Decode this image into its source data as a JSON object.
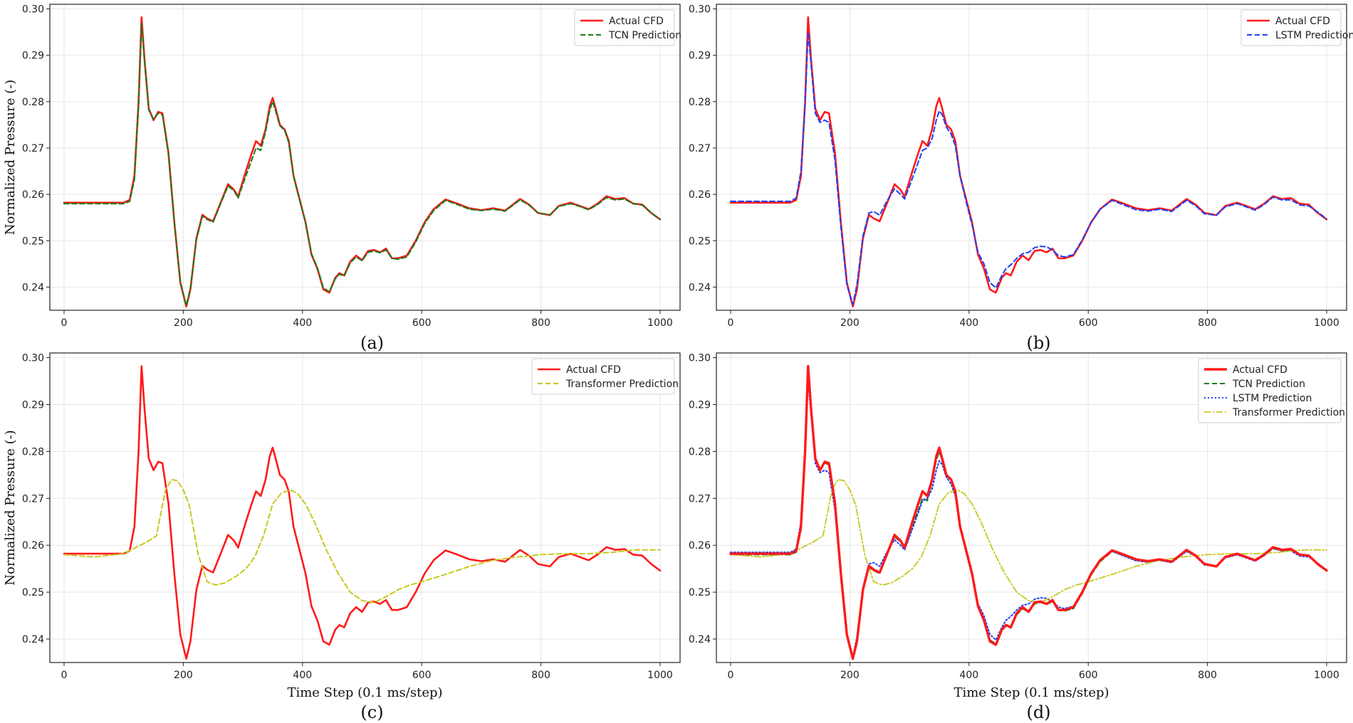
{
  "figure": {
    "ylabel": "Normalized Pressure (-)",
    "xlabel": "Time Step (0.1 ms/step)",
    "series_colors": {
      "Actual CFD": "#ff1a1a",
      "TCN Prediction": "#1a7a1a",
      "LSTM Prediction": "#1f3fff",
      "Transformer Prediction": "#c8c81e"
    }
  },
  "chart_data": [
    {
      "panel": "(a)",
      "type": "line",
      "xlim": [
        0,
        1000
      ],
      "ylim": [
        0.235,
        0.301
      ],
      "xticks": [
        0,
        200,
        400,
        600,
        800,
        1000
      ],
      "yticks": [
        0.24,
        0.25,
        0.26,
        0.27,
        0.28,
        0.29,
        0.3
      ],
      "ylabel": "Normalized Pressure (-)",
      "xlabel": "",
      "grid": true,
      "legend": "top-right",
      "series": [
        {
          "name": "Actual CFD",
          "model": "actual",
          "style": "solid"
        },
        {
          "name": "TCN Prediction",
          "model": "tcn",
          "style": "dashed"
        }
      ]
    },
    {
      "panel": "(b)",
      "type": "line",
      "xlim": [
        0,
        1000
      ],
      "ylim": [
        0.235,
        0.301
      ],
      "xticks": [
        0,
        200,
        400,
        600,
        800,
        1000
      ],
      "yticks": [
        0.24,
        0.25,
        0.26,
        0.27,
        0.28,
        0.29,
        0.3
      ],
      "ylabel": "",
      "xlabel": "",
      "grid": true,
      "legend": "top-right",
      "series": [
        {
          "name": "Actual CFD",
          "model": "actual",
          "style": "solid"
        },
        {
          "name": "LSTM Prediction",
          "model": "lstm",
          "style": "dashed"
        }
      ]
    },
    {
      "panel": "(c)",
      "type": "line",
      "xlim": [
        0,
        1000
      ],
      "ylim": [
        0.235,
        0.301
      ],
      "xticks": [
        0,
        200,
        400,
        600,
        800,
        1000
      ],
      "yticks": [
        0.24,
        0.25,
        0.26,
        0.27,
        0.28,
        0.29,
        0.3
      ],
      "ylabel": "Normalized Pressure (-)",
      "xlabel": "Time Step (0.1 ms/step)",
      "grid": true,
      "legend": "top-right",
      "series": [
        {
          "name": "Actual CFD",
          "model": "actual",
          "style": "solid"
        },
        {
          "name": "Transformer Prediction",
          "model": "transformer",
          "style": "dashed"
        }
      ]
    },
    {
      "panel": "(d)",
      "type": "line",
      "xlim": [
        0,
        1000
      ],
      "ylim": [
        0.235,
        0.301
      ],
      "xticks": [
        0,
        200,
        400,
        600,
        800,
        1000
      ],
      "yticks": [
        0.24,
        0.25,
        0.26,
        0.27,
        0.28,
        0.29,
        0.3
      ],
      "ylabel": "",
      "xlabel": "Time Step (0.1 ms/step)",
      "grid": true,
      "legend": "top-right",
      "series": [
        {
          "name": "Actual CFD",
          "model": "actual",
          "style": "solid-thick"
        },
        {
          "name": "TCN Prediction",
          "model": "tcn",
          "style": "dashed"
        },
        {
          "name": "LSTM Prediction",
          "model": "lstm",
          "style": "dotted"
        },
        {
          "name": "Transformer Prediction",
          "model": "transformer",
          "style": "dashdot"
        }
      ]
    }
  ],
  "series_data": {
    "actual": {
      "x": [
        0,
        100,
        110,
        118,
        125,
        130,
        135,
        142,
        150,
        158,
        165,
        175,
        185,
        195,
        205,
        212,
        222,
        232,
        240,
        250,
        262,
        275,
        285,
        292,
        305,
        315,
        322,
        330,
        338,
        345,
        350,
        355,
        362,
        370,
        377,
        385,
        395,
        405,
        415,
        425,
        435,
        445,
        455,
        462,
        470,
        480,
        490,
        500,
        510,
        520,
        530,
        540,
        550,
        560,
        575,
        590,
        605,
        620,
        640,
        660,
        680,
        700,
        720,
        740,
        765,
        780,
        795,
        815,
        830,
        850,
        865,
        880,
        895,
        910,
        925,
        940,
        955,
        970,
        985,
        1000
      ],
      "y": [
        0.2582,
        0.2582,
        0.2588,
        0.264,
        0.28,
        0.2982,
        0.289,
        0.2785,
        0.276,
        0.2778,
        0.2775,
        0.269,
        0.254,
        0.241,
        0.2358,
        0.2395,
        0.2505,
        0.2556,
        0.2548,
        0.2542,
        0.258,
        0.2622,
        0.261,
        0.2595,
        0.265,
        0.269,
        0.2715,
        0.2705,
        0.274,
        0.279,
        0.2808,
        0.2785,
        0.275,
        0.274,
        0.2715,
        0.264,
        0.259,
        0.254,
        0.247,
        0.244,
        0.2395,
        0.2388,
        0.242,
        0.243,
        0.2425,
        0.2455,
        0.2468,
        0.2458,
        0.2478,
        0.248,
        0.2475,
        0.2483,
        0.2462,
        0.2462,
        0.2468,
        0.25,
        0.254,
        0.2568,
        0.2589,
        0.258,
        0.257,
        0.2566,
        0.257,
        0.2565,
        0.259,
        0.2578,
        0.256,
        0.2555,
        0.2575,
        0.2582,
        0.2575,
        0.2568,
        0.258,
        0.2596,
        0.259,
        0.2592,
        0.258,
        0.2578,
        0.256,
        0.2546
      ]
    },
    "tcn": {
      "x": [
        0,
        100,
        110,
        118,
        125,
        130,
        135,
        142,
        150,
        158,
        165,
        175,
        185,
        195,
        205,
        212,
        222,
        232,
        240,
        250,
        262,
        275,
        285,
        292,
        305,
        315,
        322,
        330,
        338,
        345,
        350,
        355,
        362,
        370,
        377,
        385,
        395,
        405,
        415,
        425,
        435,
        445,
        455,
        462,
        470,
        480,
        490,
        500,
        510,
        520,
        530,
        540,
        550,
        560,
        575,
        590,
        605,
        620,
        640,
        660,
        680,
        700,
        720,
        740,
        765,
        780,
        795,
        815,
        830,
        850,
        865,
        880,
        895,
        910,
        925,
        940,
        955,
        970,
        985,
        1000
      ],
      "y": [
        0.258,
        0.258,
        0.2585,
        0.2632,
        0.279,
        0.2968,
        0.2885,
        0.2782,
        0.2762,
        0.2775,
        0.2772,
        0.2688,
        0.254,
        0.2412,
        0.236,
        0.2398,
        0.2502,
        0.2553,
        0.2546,
        0.254,
        0.2578,
        0.2618,
        0.2608,
        0.2592,
        0.264,
        0.2675,
        0.27,
        0.2695,
        0.2735,
        0.2782,
        0.28,
        0.278,
        0.2748,
        0.2738,
        0.2712,
        0.264,
        0.2588,
        0.254,
        0.2472,
        0.2442,
        0.2398,
        0.239,
        0.2418,
        0.2428,
        0.2424,
        0.2452,
        0.2465,
        0.2457,
        0.2475,
        0.2478,
        0.2474,
        0.248,
        0.2462,
        0.246,
        0.2465,
        0.2497,
        0.2537,
        0.2565,
        0.2587,
        0.2578,
        0.2568,
        0.2565,
        0.2568,
        0.2564,
        0.2588,
        0.2577,
        0.256,
        0.2556,
        0.2574,
        0.258,
        0.2574,
        0.2567,
        0.2578,
        0.2593,
        0.2588,
        0.259,
        0.258,
        0.2577,
        0.256,
        0.2546
      ]
    },
    "lstm": {
      "x": [
        0,
        100,
        110,
        118,
        125,
        130,
        135,
        142,
        150,
        158,
        165,
        175,
        185,
        195,
        205,
        212,
        222,
        232,
        240,
        250,
        262,
        275,
        285,
        292,
        305,
        315,
        322,
        330,
        338,
        345,
        350,
        355,
        362,
        370,
        377,
        385,
        395,
        405,
        415,
        425,
        435,
        445,
        455,
        462,
        470,
        480,
        490,
        500,
        510,
        520,
        530,
        540,
        550,
        560,
        575,
        590,
        605,
        620,
        640,
        660,
        680,
        700,
        720,
        740,
        765,
        780,
        795,
        815,
        830,
        850,
        865,
        880,
        895,
        910,
        925,
        940,
        955,
        970,
        985,
        1000
      ],
      "y": [
        0.2585,
        0.2585,
        0.2592,
        0.265,
        0.2795,
        0.295,
        0.288,
        0.2775,
        0.2755,
        0.276,
        0.2755,
        0.2675,
        0.253,
        0.2405,
        0.2362,
        0.2405,
        0.251,
        0.256,
        0.2563,
        0.2555,
        0.2585,
        0.2612,
        0.26,
        0.259,
        0.2635,
        0.267,
        0.2695,
        0.27,
        0.272,
        0.276,
        0.278,
        0.2772,
        0.2745,
        0.273,
        0.2705,
        0.264,
        0.2585,
        0.2535,
        0.2475,
        0.245,
        0.241,
        0.2398,
        0.2425,
        0.244,
        0.2448,
        0.2462,
        0.2472,
        0.2475,
        0.2485,
        0.2488,
        0.2487,
        0.248,
        0.2468,
        0.2465,
        0.247,
        0.2502,
        0.254,
        0.2568,
        0.2587,
        0.2577,
        0.2567,
        0.2564,
        0.2568,
        0.2563,
        0.2587,
        0.2576,
        0.2558,
        0.2555,
        0.2573,
        0.258,
        0.2573,
        0.2566,
        0.2578,
        0.2594,
        0.2588,
        0.2588,
        0.2577,
        0.2575,
        0.2562,
        0.2547
      ]
    },
    "transformer": {
      "x": [
        0,
        50,
        100,
        120,
        140,
        155,
        170,
        180,
        190,
        200,
        210,
        225,
        240,
        255,
        270,
        290,
        305,
        320,
        335,
        350,
        365,
        380,
        392,
        405,
        420,
        440,
        460,
        480,
        500,
        520,
        540,
        560,
        580,
        600,
        640,
        680,
        720,
        760,
        800,
        840,
        880,
        920,
        960,
        1000
      ],
      "y": [
        0.258,
        0.2575,
        0.2582,
        0.2595,
        0.2608,
        0.262,
        0.2718,
        0.274,
        0.2738,
        0.2718,
        0.2685,
        0.258,
        0.2522,
        0.2515,
        0.252,
        0.2535,
        0.255,
        0.2575,
        0.2622,
        0.2688,
        0.2712,
        0.2718,
        0.271,
        0.2688,
        0.265,
        0.259,
        0.254,
        0.25,
        0.2482,
        0.2478,
        0.249,
        0.2505,
        0.2515,
        0.2522,
        0.2538,
        0.2555,
        0.2568,
        0.2575,
        0.258,
        0.2582,
        0.2582,
        0.2585,
        0.259,
        0.259
      ]
    }
  }
}
